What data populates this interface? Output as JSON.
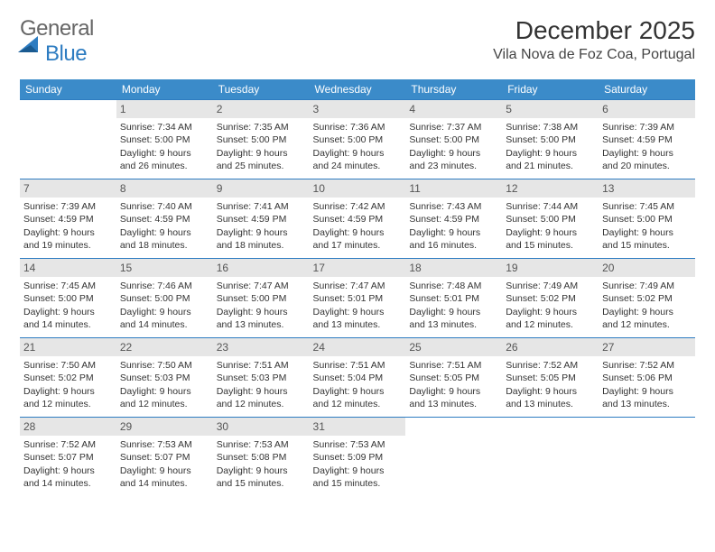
{
  "brand": {
    "part1": "General",
    "part2": "Blue"
  },
  "title": "December 2025",
  "location": "Vila Nova de Foz Coa, Portugal",
  "colors": {
    "header_bg": "#3b8bc9",
    "header_text": "#ffffff",
    "row_border": "#2d7cc1",
    "daynum_bg": "#e6e6e6",
    "body_text": "#333333",
    "page_bg": "#ffffff"
  },
  "weekdays": [
    "Sunday",
    "Monday",
    "Tuesday",
    "Wednesday",
    "Thursday",
    "Friday",
    "Saturday"
  ],
  "weeks": [
    [
      {
        "day": "",
        "sunrise": "",
        "sunset": "",
        "daylight": ""
      },
      {
        "day": "1",
        "sunrise": "7:34 AM",
        "sunset": "5:00 PM",
        "daylight": "9 hours and 26 minutes."
      },
      {
        "day": "2",
        "sunrise": "7:35 AM",
        "sunset": "5:00 PM",
        "daylight": "9 hours and 25 minutes."
      },
      {
        "day": "3",
        "sunrise": "7:36 AM",
        "sunset": "5:00 PM",
        "daylight": "9 hours and 24 minutes."
      },
      {
        "day": "4",
        "sunrise": "7:37 AM",
        "sunset": "5:00 PM",
        "daylight": "9 hours and 23 minutes."
      },
      {
        "day": "5",
        "sunrise": "7:38 AM",
        "sunset": "5:00 PM",
        "daylight": "9 hours and 21 minutes."
      },
      {
        "day": "6",
        "sunrise": "7:39 AM",
        "sunset": "4:59 PM",
        "daylight": "9 hours and 20 minutes."
      }
    ],
    [
      {
        "day": "7",
        "sunrise": "7:39 AM",
        "sunset": "4:59 PM",
        "daylight": "9 hours and 19 minutes."
      },
      {
        "day": "8",
        "sunrise": "7:40 AM",
        "sunset": "4:59 PM",
        "daylight": "9 hours and 18 minutes."
      },
      {
        "day": "9",
        "sunrise": "7:41 AM",
        "sunset": "4:59 PM",
        "daylight": "9 hours and 18 minutes."
      },
      {
        "day": "10",
        "sunrise": "7:42 AM",
        "sunset": "4:59 PM",
        "daylight": "9 hours and 17 minutes."
      },
      {
        "day": "11",
        "sunrise": "7:43 AM",
        "sunset": "4:59 PM",
        "daylight": "9 hours and 16 minutes."
      },
      {
        "day": "12",
        "sunrise": "7:44 AM",
        "sunset": "5:00 PM",
        "daylight": "9 hours and 15 minutes."
      },
      {
        "day": "13",
        "sunrise": "7:45 AM",
        "sunset": "5:00 PM",
        "daylight": "9 hours and 15 minutes."
      }
    ],
    [
      {
        "day": "14",
        "sunrise": "7:45 AM",
        "sunset": "5:00 PM",
        "daylight": "9 hours and 14 minutes."
      },
      {
        "day": "15",
        "sunrise": "7:46 AM",
        "sunset": "5:00 PM",
        "daylight": "9 hours and 14 minutes."
      },
      {
        "day": "16",
        "sunrise": "7:47 AM",
        "sunset": "5:00 PM",
        "daylight": "9 hours and 13 minutes."
      },
      {
        "day": "17",
        "sunrise": "7:47 AM",
        "sunset": "5:01 PM",
        "daylight": "9 hours and 13 minutes."
      },
      {
        "day": "18",
        "sunrise": "7:48 AM",
        "sunset": "5:01 PM",
        "daylight": "9 hours and 13 minutes."
      },
      {
        "day": "19",
        "sunrise": "7:49 AM",
        "sunset": "5:02 PM",
        "daylight": "9 hours and 12 minutes."
      },
      {
        "day": "20",
        "sunrise": "7:49 AM",
        "sunset": "5:02 PM",
        "daylight": "9 hours and 12 minutes."
      }
    ],
    [
      {
        "day": "21",
        "sunrise": "7:50 AM",
        "sunset": "5:02 PM",
        "daylight": "9 hours and 12 minutes."
      },
      {
        "day": "22",
        "sunrise": "7:50 AM",
        "sunset": "5:03 PM",
        "daylight": "9 hours and 12 minutes."
      },
      {
        "day": "23",
        "sunrise": "7:51 AM",
        "sunset": "5:03 PM",
        "daylight": "9 hours and 12 minutes."
      },
      {
        "day": "24",
        "sunrise": "7:51 AM",
        "sunset": "5:04 PM",
        "daylight": "9 hours and 12 minutes."
      },
      {
        "day": "25",
        "sunrise": "7:51 AM",
        "sunset": "5:05 PM",
        "daylight": "9 hours and 13 minutes."
      },
      {
        "day": "26",
        "sunrise": "7:52 AM",
        "sunset": "5:05 PM",
        "daylight": "9 hours and 13 minutes."
      },
      {
        "day": "27",
        "sunrise": "7:52 AM",
        "sunset": "5:06 PM",
        "daylight": "9 hours and 13 minutes."
      }
    ],
    [
      {
        "day": "28",
        "sunrise": "7:52 AM",
        "sunset": "5:07 PM",
        "daylight": "9 hours and 14 minutes."
      },
      {
        "day": "29",
        "sunrise": "7:53 AM",
        "sunset": "5:07 PM",
        "daylight": "9 hours and 14 minutes."
      },
      {
        "day": "30",
        "sunrise": "7:53 AM",
        "sunset": "5:08 PM",
        "daylight": "9 hours and 15 minutes."
      },
      {
        "day": "31",
        "sunrise": "7:53 AM",
        "sunset": "5:09 PM",
        "daylight": "9 hours and 15 minutes."
      },
      {
        "day": "",
        "sunrise": "",
        "sunset": "",
        "daylight": ""
      },
      {
        "day": "",
        "sunrise": "",
        "sunset": "",
        "daylight": ""
      },
      {
        "day": "",
        "sunrise": "",
        "sunset": "",
        "daylight": ""
      }
    ]
  ],
  "labels": {
    "sunrise": "Sunrise:",
    "sunset": "Sunset:",
    "daylight": "Daylight:"
  }
}
